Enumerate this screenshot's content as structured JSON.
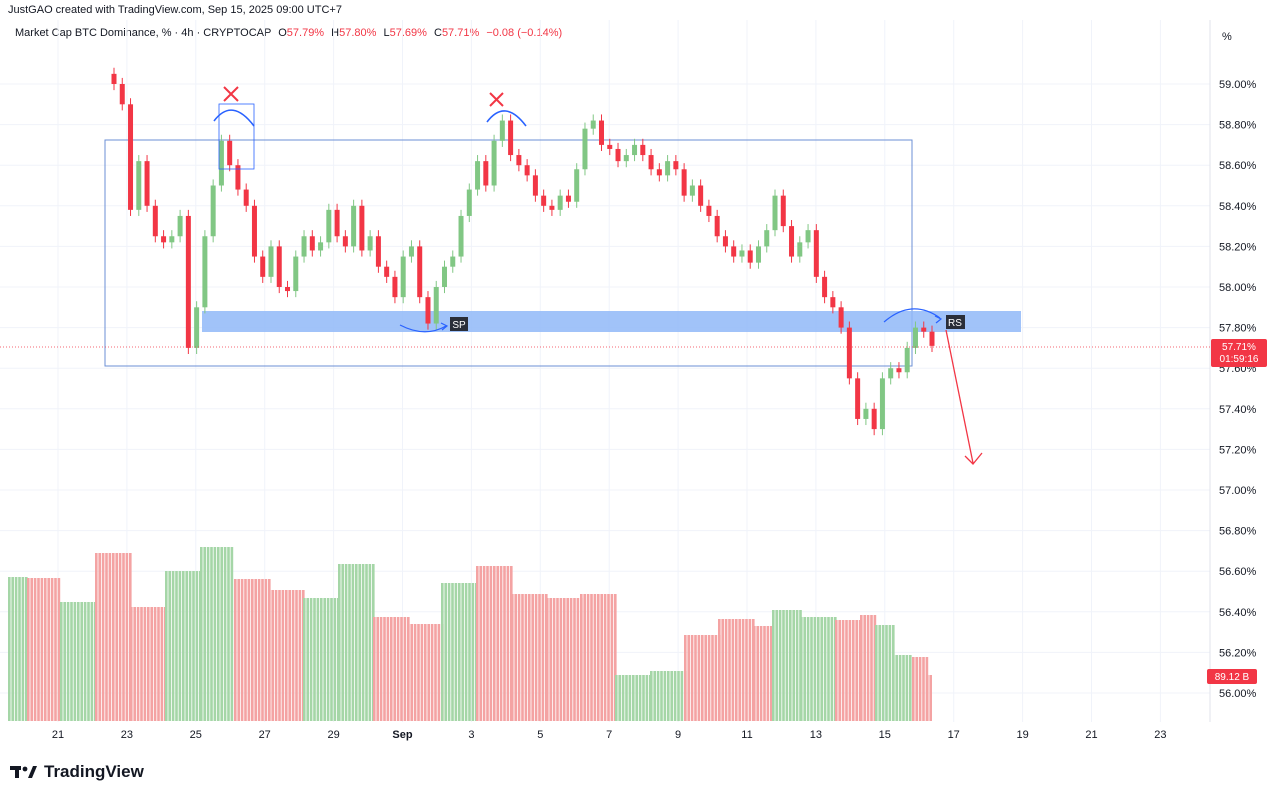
{
  "credit": "JustGAO created with TradingView.com, Sep 15, 2025 09:00 UTC+7",
  "legend": {
    "symbol": "Market Cap BTC Dominance, % · 4h · CRYPTOCAP",
    "o_key": "O",
    "o_val": "57.79%",
    "h_key": "H",
    "h_val": "57.80%",
    "l_key": "L",
    "l_val": "57.69%",
    "c_key": "C",
    "c_val": "57.71%",
    "change": "−0.08 (−0.14%)"
  },
  "axis_unit": "%",
  "price_tag": {
    "price": "57.71%",
    "countdown": "01:59:16"
  },
  "volume_tag": "89.12 B",
  "annotations": {
    "sp": "SP",
    "rs": "RS"
  },
  "brand": "TradingView",
  "colors": {
    "up": "#81c784",
    "down": "#f23645",
    "up_vol": "#a5d6a7",
    "down_vol": "#f4a3a3",
    "zone": "#90b8f8",
    "box": "#6b8fd6"
  },
  "chart_data": {
    "type": "candlestick",
    "title": "Market Cap BTC Dominance, % · 4h · CRYPTOCAP",
    "ylim": [
      55.9,
      59.2
    ],
    "y_ticks": [
      "59.00%",
      "58.80%",
      "58.60%",
      "58.40%",
      "58.20%",
      "58.00%",
      "57.80%",
      "57.60%",
      "57.40%",
      "57.20%",
      "57.00%",
      "56.80%",
      "56.60%",
      "56.40%",
      "56.20%",
      "56.00%"
    ],
    "x_ticks": [
      "21",
      "23",
      "25",
      "27",
      "29",
      "Sep",
      "3",
      "5",
      "7",
      "9",
      "11",
      "13",
      "15",
      "17",
      "19",
      "21",
      "23"
    ],
    "closes": [
      59.0,
      58.9,
      58.38,
      58.62,
      58.4,
      58.25,
      58.22,
      58.25,
      58.35,
      57.7,
      57.9,
      58.25,
      58.5,
      58.72,
      58.6,
      58.48,
      58.4,
      58.15,
      58.05,
      58.2,
      58.0,
      57.98,
      58.15,
      58.25,
      58.18,
      58.22,
      58.38,
      58.25,
      58.2,
      58.4,
      58.18,
      58.25,
      58.1,
      58.05,
      57.95,
      58.15,
      58.2,
      57.95,
      57.82,
      58.0,
      58.1,
      58.15,
      58.35,
      58.48,
      58.62,
      58.5,
      58.72,
      58.82,
      58.65,
      58.6,
      58.55,
      58.45,
      58.4,
      58.38,
      58.45,
      58.42,
      58.58,
      58.78,
      58.82,
      58.7,
      58.68,
      58.62,
      58.65,
      58.7,
      58.65,
      58.58,
      58.55,
      58.62,
      58.58,
      58.45,
      58.5,
      58.4,
      58.35,
      58.25,
      58.2,
      58.15,
      58.18,
      58.12,
      58.2,
      58.28,
      58.45,
      58.3,
      58.15,
      58.22,
      58.28,
      58.05,
      57.95,
      57.9,
      57.8,
      57.55,
      57.35,
      57.4,
      57.3,
      57.55,
      57.6,
      57.58,
      57.7,
      57.8,
      57.78,
      57.71
    ],
    "volume": {
      "unit": "B",
      "last": 89.12
    }
  }
}
